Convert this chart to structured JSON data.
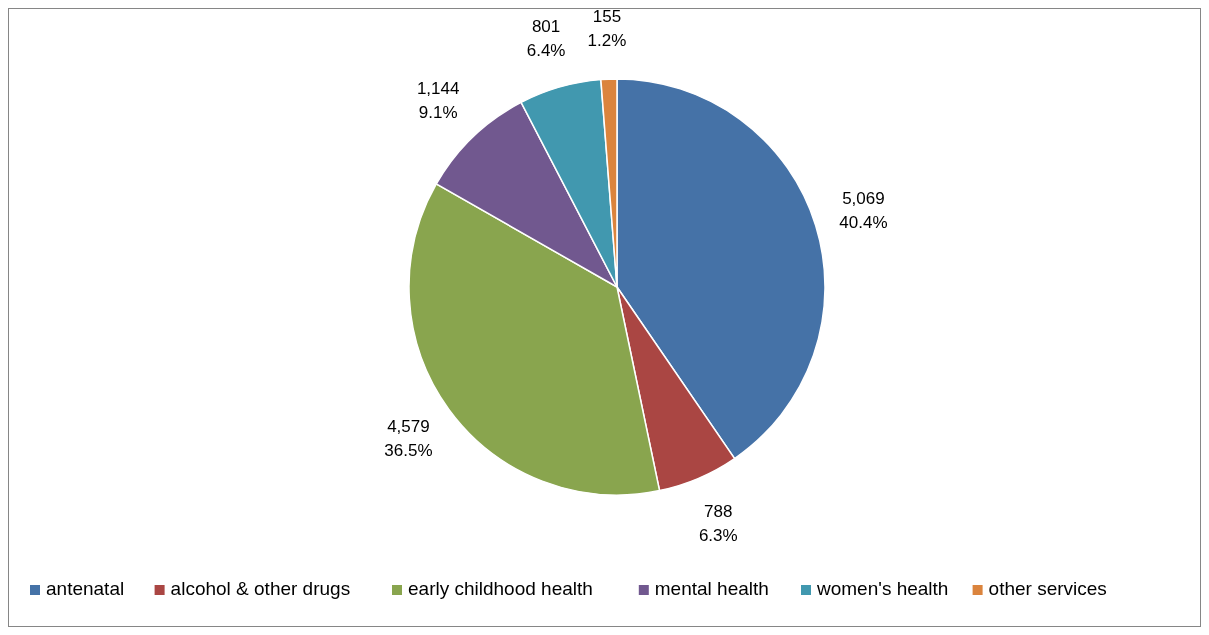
{
  "chart_data": {
    "type": "pie",
    "categories": [
      "antenatal",
      "alcohol & other drugs",
      "early childhood health",
      "mental health",
      "women's health",
      "other services"
    ],
    "values": [
      5069,
      788,
      4579,
      1144,
      801,
      155
    ],
    "colors": [
      "#4572a7",
      "#aa4643",
      "#89a54e",
      "#71588f",
      "#4198af",
      "#db843d"
    ],
    "value_labels": [
      "5,069\n40.4%",
      "788\n6.3%",
      "4,579\n36.5%",
      "1,144\n9.1%",
      "801\n6.4%",
      "155\n1.2%"
    ],
    "legend": "bottom"
  }
}
